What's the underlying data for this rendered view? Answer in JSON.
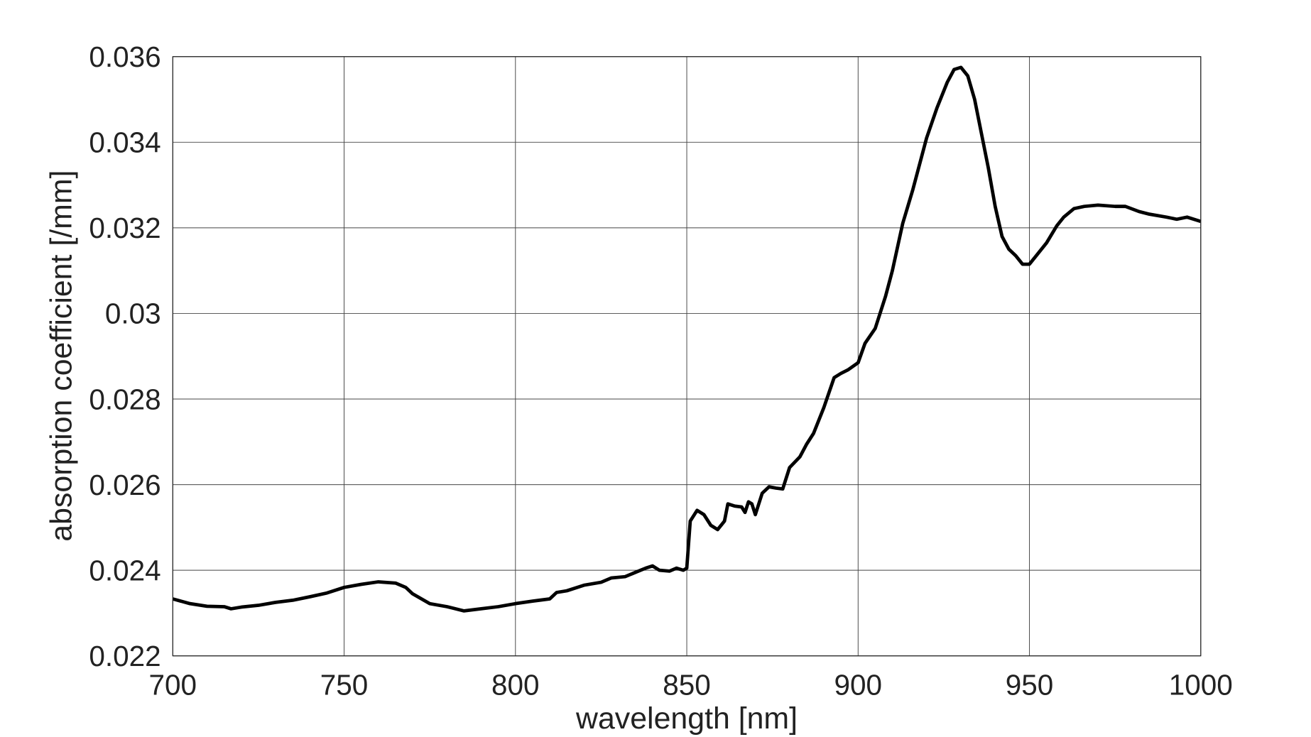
{
  "chart_data": {
    "type": "line",
    "title": "",
    "xlabel": "wavelength [nm]",
    "ylabel": "absorption coefficient [/mm]",
    "xlim": [
      700,
      1000
    ],
    "ylim": [
      0.022,
      0.036
    ],
    "grid": true,
    "xticks": [
      "700",
      "750",
      "800",
      "850",
      "900",
      "950",
      "1000"
    ],
    "yticks": [
      "0.022",
      "0.024",
      "0.026",
      "0.028",
      "0.03",
      "0.032",
      "0.034",
      "0.036"
    ],
    "line_color": "#000000",
    "series": [
      {
        "x": [
          700,
          705,
          710,
          715,
          717,
          720,
          725,
          730,
          735,
          740,
          745,
          750,
          755,
          760,
          765,
          768,
          770,
          775,
          780,
          785,
          790,
          795,
          800,
          805,
          810,
          812,
          815,
          820,
          825,
          828,
          832,
          835,
          838,
          840,
          842,
          845,
          847,
          849,
          850,
          851,
          853,
          855,
          857,
          859,
          861,
          862,
          864,
          866,
          867,
          868,
          869,
          870,
          872,
          874,
          876,
          878,
          880,
          883,
          885,
          887,
          890,
          893,
          895,
          897,
          900,
          902,
          905,
          908,
          910,
          913,
          916,
          920,
          923,
          926,
          928,
          930,
          932,
          934,
          936,
          938,
          940,
          942,
          944,
          946,
          948,
          950,
          952,
          955,
          958,
          960,
          963,
          966,
          970,
          975,
          978,
          982,
          985,
          990,
          993,
          996,
          1000
        ],
        "y": [
          0.02333,
          0.02322,
          0.02316,
          0.02315,
          0.0231,
          0.02314,
          0.02318,
          0.02325,
          0.0233,
          0.02338,
          0.02347,
          0.0236,
          0.02367,
          0.02373,
          0.0237,
          0.0236,
          0.02345,
          0.02322,
          0.02315,
          0.02305,
          0.0231,
          0.02315,
          0.02322,
          0.02328,
          0.02333,
          0.02348,
          0.02352,
          0.02365,
          0.02372,
          0.02382,
          0.02385,
          0.02395,
          0.02405,
          0.0241,
          0.024,
          0.02398,
          0.02405,
          0.024,
          0.02405,
          0.02515,
          0.0254,
          0.0253,
          0.02505,
          0.02495,
          0.02515,
          0.02555,
          0.0255,
          0.02548,
          0.02535,
          0.0256,
          0.02555,
          0.0253,
          0.0258,
          0.02595,
          0.02592,
          0.0259,
          0.0264,
          0.02665,
          0.02695,
          0.0272,
          0.0278,
          0.0285,
          0.0286,
          0.02868,
          0.02885,
          0.0293,
          0.02965,
          0.0304,
          0.031,
          0.0321,
          0.0329,
          0.0341,
          0.0348,
          0.0354,
          0.0357,
          0.03575,
          0.03555,
          0.035,
          0.0342,
          0.0334,
          0.0325,
          0.0318,
          0.0315,
          0.03135,
          0.03115,
          0.03115,
          0.03135,
          0.03165,
          0.03205,
          0.03225,
          0.03245,
          0.0325,
          0.03253,
          0.0325,
          0.0325,
          0.03238,
          0.03232,
          0.03225,
          0.0322,
          0.03225,
          0.03215
        ]
      }
    ]
  }
}
